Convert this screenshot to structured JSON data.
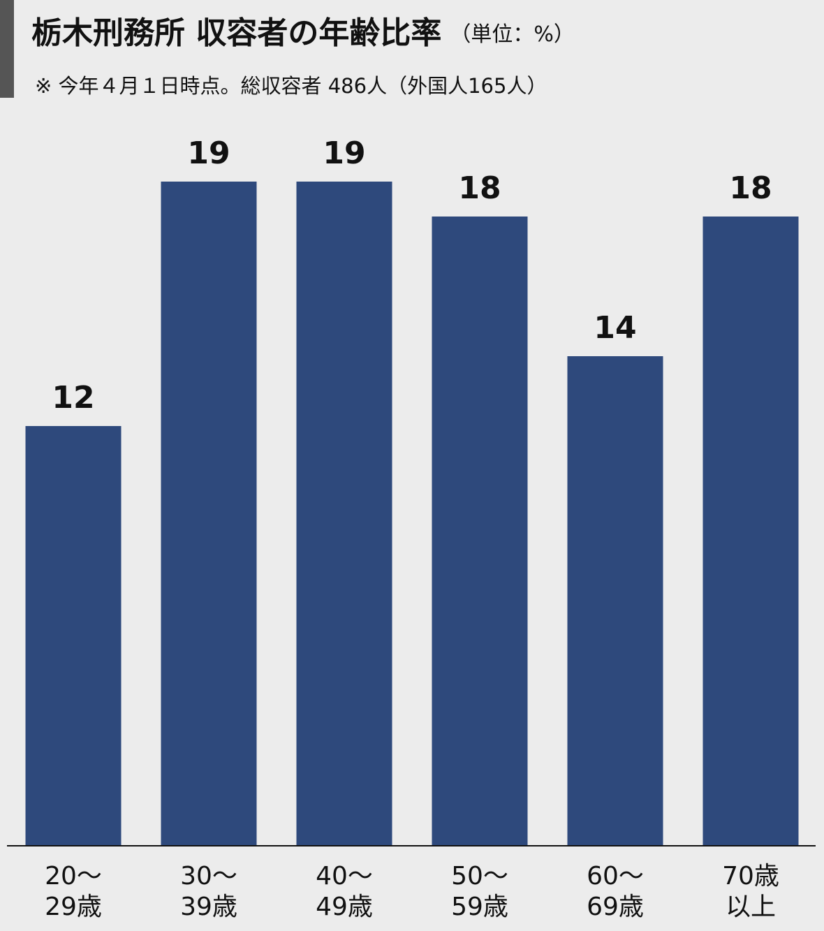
{
  "chart_data": {
    "type": "bar",
    "title": "栃木刑務所 収容者の年齢比率",
    "unit": "（単位：%）",
    "note": "※ 今年４月１日時点。総収容者 486人（外国人165人）",
    "categories": [
      [
        "20～",
        "29歳"
      ],
      [
        "30～",
        "39歳"
      ],
      [
        "40～",
        "49歳"
      ],
      [
        "50～",
        "59歳"
      ],
      [
        "60～",
        "69歳"
      ],
      [
        "70歳",
        "以上"
      ]
    ],
    "values": [
      12,
      19,
      19,
      18,
      14,
      18
    ],
    "color": "#2e497c"
  }
}
